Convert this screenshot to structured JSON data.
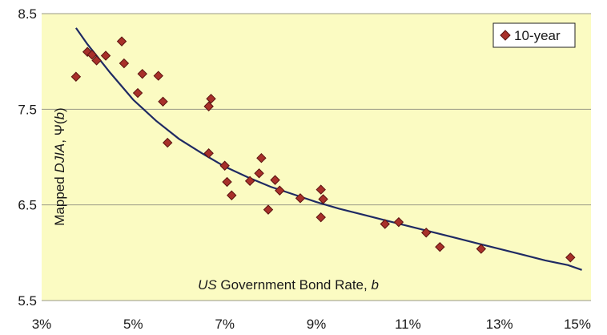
{
  "chart_data": {
    "type": "scatter",
    "title": "",
    "xlabel_parts": [
      {
        "text": "US",
        "italic": true
      },
      {
        "text": " Government Bond Rate, ",
        "italic": false
      },
      {
        "text": "b",
        "italic": true
      }
    ],
    "ylabel_parts": [
      {
        "text": "Mapped ",
        "italic": false
      },
      {
        "text": "DJIA",
        "italic": true
      },
      {
        "text": ", Ψ(",
        "italic": false
      },
      {
        "text": "b",
        "italic": true
      },
      {
        "text": ")",
        "italic": false
      }
    ],
    "xlim": [
      0.03,
      0.15
    ],
    "ylim": [
      5.5,
      8.5
    ],
    "xticks": [
      0.03,
      0.05,
      0.07,
      0.09,
      0.11,
      0.13,
      0.15
    ],
    "xtick_labels": [
      "3%",
      "5%",
      "7%",
      "9%",
      "11%",
      "13%",
      "15%"
    ],
    "yticks": [
      5.5,
      6.5,
      7.5,
      8.5
    ],
    "ytick_labels": [
      "5.5",
      "6.5",
      "7.5",
      "8.5"
    ],
    "grid": {
      "x": false,
      "y": true
    },
    "legend": {
      "position": "top-right",
      "entries": [
        "10-year"
      ]
    },
    "colors": {
      "plot_bg": "#fbfbc2",
      "marker_fill": "#a8302a",
      "marker_edge": "#5a1210",
      "fit_line": "#1f2a63",
      "gridline": "#9a9a86"
    },
    "series": [
      {
        "name": "10-year",
        "type": "scatter",
        "points": [
          [
            0.0375,
            7.84
          ],
          [
            0.04,
            8.1
          ],
          [
            0.041,
            8.07
          ],
          [
            0.042,
            8.01
          ],
          [
            0.044,
            8.06
          ],
          [
            0.0475,
            8.21
          ],
          [
            0.048,
            7.98
          ],
          [
            0.051,
            7.67
          ],
          [
            0.052,
            7.87
          ],
          [
            0.0555,
            7.85
          ],
          [
            0.0565,
            7.58
          ],
          [
            0.0575,
            7.15
          ],
          [
            0.0665,
            7.53
          ],
          [
            0.067,
            7.61
          ],
          [
            0.0665,
            7.04
          ],
          [
            0.07,
            6.91
          ],
          [
            0.0705,
            6.74
          ],
          [
            0.0715,
            6.6
          ],
          [
            0.0755,
            6.75
          ],
          [
            0.0775,
            6.83
          ],
          [
            0.078,
            6.99
          ],
          [
            0.0795,
            6.45
          ],
          [
            0.081,
            6.76
          ],
          [
            0.082,
            6.65
          ],
          [
            0.0865,
            6.57
          ],
          [
            0.091,
            6.66
          ],
          [
            0.0915,
            6.56
          ],
          [
            0.091,
            6.37
          ],
          [
            0.105,
            6.3
          ],
          [
            0.108,
            6.32
          ],
          [
            0.114,
            6.21
          ],
          [
            0.117,
            6.06
          ],
          [
            0.126,
            6.04
          ],
          [
            0.1455,
            5.95
          ]
        ]
      },
      {
        "name": "fit",
        "type": "line",
        "points": [
          [
            0.0375,
            8.35
          ],
          [
            0.04,
            8.18
          ],
          [
            0.045,
            7.88
          ],
          [
            0.05,
            7.6
          ],
          [
            0.055,
            7.38
          ],
          [
            0.06,
            7.19
          ],
          [
            0.065,
            7.04
          ],
          [
            0.07,
            6.9
          ],
          [
            0.075,
            6.79
          ],
          [
            0.08,
            6.69
          ],
          [
            0.085,
            6.61
          ],
          [
            0.09,
            6.53
          ],
          [
            0.095,
            6.46
          ],
          [
            0.1,
            6.4
          ],
          [
            0.105,
            6.34
          ],
          [
            0.11,
            6.28
          ],
          [
            0.115,
            6.22
          ],
          [
            0.12,
            6.16
          ],
          [
            0.125,
            6.1
          ],
          [
            0.13,
            6.04
          ],
          [
            0.135,
            5.98
          ],
          [
            0.14,
            5.92
          ],
          [
            0.145,
            5.87
          ],
          [
            0.148,
            5.82
          ]
        ]
      }
    ]
  }
}
